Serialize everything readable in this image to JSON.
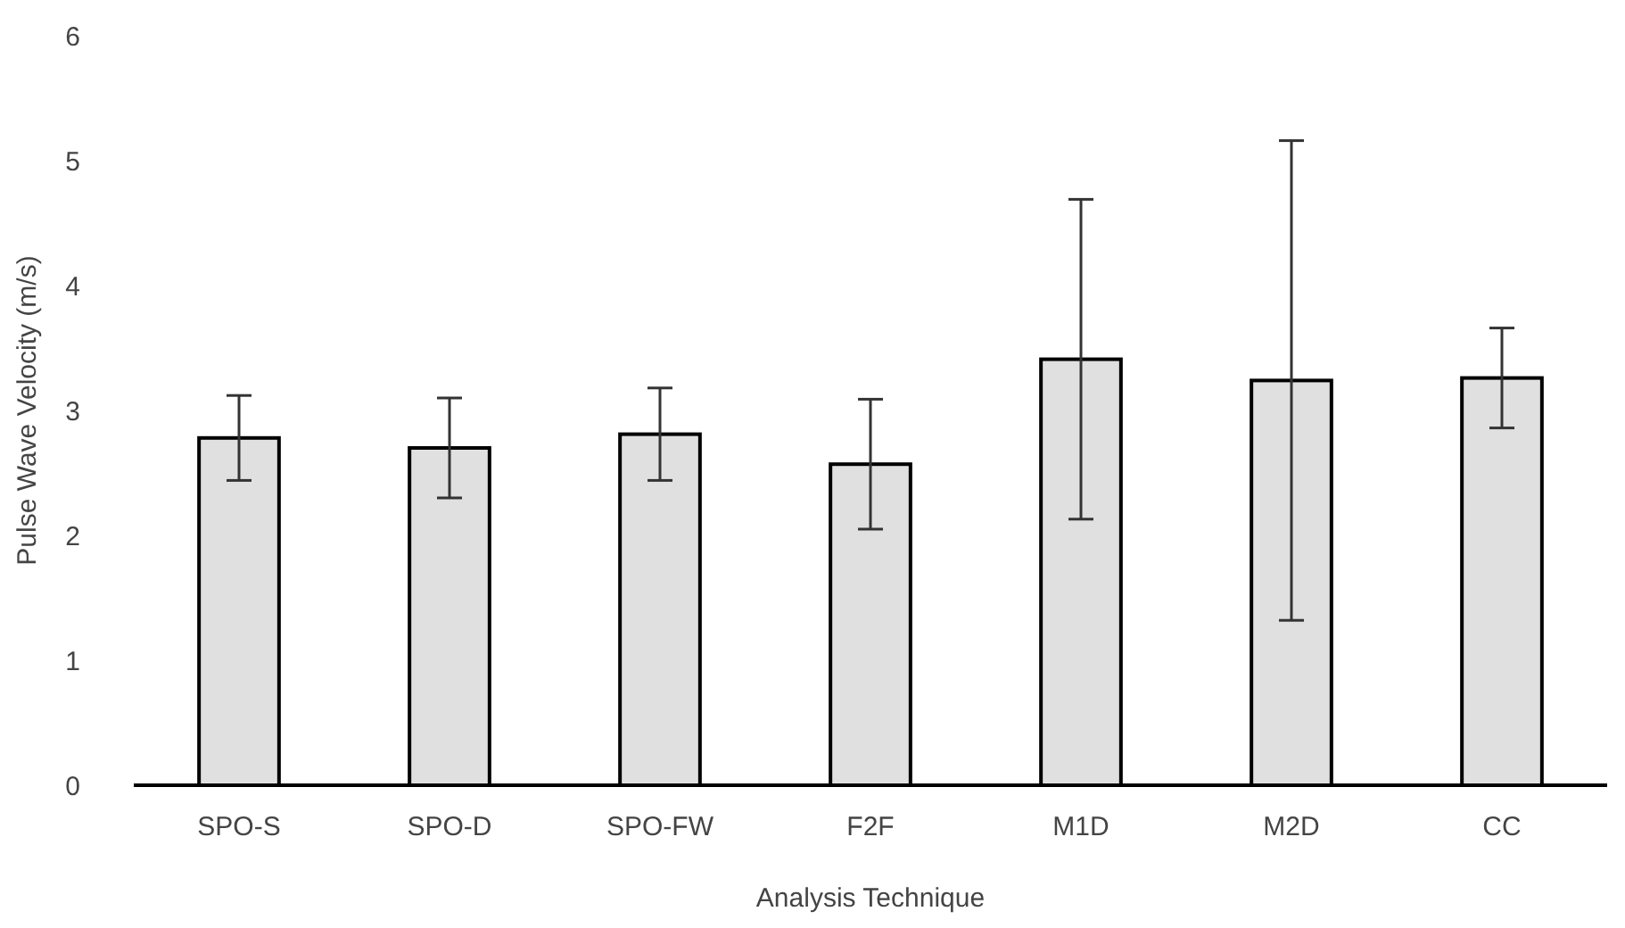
{
  "chart_data": {
    "type": "bar",
    "xlabel": "Analysis Technique",
    "ylabel": "Pulse Wave Velocity (m/s)",
    "categories": [
      "SPO-S",
      "SPO-D",
      "SPO-FW",
      "F2F",
      "M1D",
      "M2D",
      "CC"
    ],
    "values": [
      2.78,
      2.7,
      2.81,
      2.57,
      3.41,
      3.24,
      3.26
    ],
    "errors": [
      0.34,
      0.4,
      0.37,
      0.52,
      1.28,
      1.92,
      0.4
    ],
    "color": "#e0e0e0",
    "ylim": [
      0,
      6
    ],
    "yticks": [
      0,
      1,
      2,
      3,
      4,
      5,
      6
    ],
    "grid": false
  }
}
